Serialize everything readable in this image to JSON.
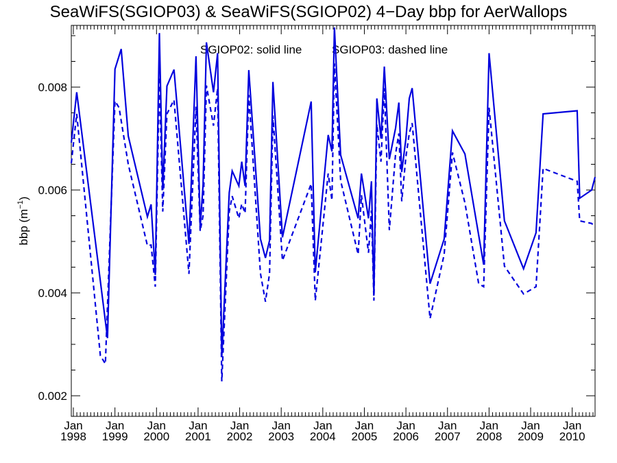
{
  "chart_data": {
    "type": "line",
    "title": "SeaWiFS(SGIOP03) & SeaWiFS(SGIOP02) 4−Day bbp for AerWallops",
    "legend_solid": "SGIOP02: solid line",
    "legend_dashed": "SGIOP03: dashed line",
    "ylabel": "bbp (m",
    "ylabel_exp": "−1",
    "ylabel_close": ")",
    "ylim": [
      0.0016,
      0.0092
    ],
    "xlim": [
      1997.95,
      2010.55
    ],
    "y_ticks": [
      {
        "value": 0.002,
        "label": "0.002"
      },
      {
        "value": 0.004,
        "label": "0.004"
      },
      {
        "value": 0.006,
        "label": "0.006"
      },
      {
        "value": 0.008,
        "label": "0.008"
      }
    ],
    "x_ticks": [
      {
        "value": 1998,
        "month": "Jan",
        "year": "1998"
      },
      {
        "value": 1999,
        "month": "Jan",
        "year": "1999"
      },
      {
        "value": 2000,
        "month": "Jan",
        "year": "2000"
      },
      {
        "value": 2001,
        "month": "Jan",
        "year": "2001"
      },
      {
        "value": 2002,
        "month": "Jan",
        "year": "2002"
      },
      {
        "value": 2003,
        "month": "Jan",
        "year": "2003"
      },
      {
        "value": 2004,
        "month": "Jan",
        "year": "2004"
      },
      {
        "value": 2005,
        "month": "Jan",
        "year": "2005"
      },
      {
        "value": 2006,
        "month": "Jan",
        "year": "2006"
      },
      {
        "value": 2007,
        "month": "Jan",
        "year": "2007"
      },
      {
        "value": 2008,
        "month": "Jan",
        "year": "2008"
      },
      {
        "value": 2009,
        "month": "Jan",
        "year": "2009"
      },
      {
        "value": 2010,
        "month": "Jan",
        "year": "2010"
      }
    ],
    "line_color": "#0000dd",
    "series": [
      {
        "name": "SGIOP02",
        "style": "solid",
        "points": [
          [
            1997.95,
            0.00692
          ],
          [
            1998.08,
            0.0079
          ],
          [
            1998.82,
            0.00312
          ],
          [
            1999.0,
            0.00835
          ],
          [
            1999.15,
            0.00874
          ],
          [
            1999.32,
            0.00705
          ],
          [
            1999.78,
            0.00548
          ],
          [
            1999.87,
            0.00572
          ],
          [
            1999.97,
            0.00435
          ],
          [
            2000.07,
            0.00905
          ],
          [
            2000.15,
            0.006
          ],
          [
            2000.25,
            0.00802
          ],
          [
            2000.42,
            0.00834
          ],
          [
            2000.78,
            0.00495
          ],
          [
            2000.95,
            0.0086
          ],
          [
            2001.05,
            0.00528
          ],
          [
            2001.12,
            0.0061
          ],
          [
            2001.2,
            0.00887
          ],
          [
            2001.37,
            0.0079
          ],
          [
            2001.47,
            0.00866
          ],
          [
            2001.57,
            0.00276
          ],
          [
            2001.75,
            0.00595
          ],
          [
            2001.82,
            0.00637
          ],
          [
            2001.98,
            0.00608
          ],
          [
            2002.05,
            0.00655
          ],
          [
            2002.13,
            0.00608
          ],
          [
            2002.22,
            0.00833
          ],
          [
            2002.5,
            0.00505
          ],
          [
            2002.62,
            0.00468
          ],
          [
            2002.72,
            0.00502
          ],
          [
            2002.8,
            0.0081
          ],
          [
            2003.03,
            0.00508
          ],
          [
            2003.72,
            0.00772
          ],
          [
            2003.82,
            0.0044
          ],
          [
            2004.13,
            0.00707
          ],
          [
            2004.22,
            0.00675
          ],
          [
            2004.28,
            0.00916
          ],
          [
            2004.43,
            0.00668
          ],
          [
            2004.85,
            0.00545
          ],
          [
            2004.93,
            0.00632
          ],
          [
            2005.1,
            0.00545
          ],
          [
            2005.17,
            0.00617
          ],
          [
            2005.23,
            0.00395
          ],
          [
            2005.3,
            0.00778
          ],
          [
            2005.4,
            0.007
          ],
          [
            2005.48,
            0.0084
          ],
          [
            2005.6,
            0.0066
          ],
          [
            2005.75,
            0.0072
          ],
          [
            2005.83,
            0.0077
          ],
          [
            2005.9,
            0.00635
          ],
          [
            2006.0,
            0.007
          ],
          [
            2006.08,
            0.00778
          ],
          [
            2006.15,
            0.00798
          ],
          [
            2006.58,
            0.00418
          ],
          [
            2006.92,
            0.00505
          ],
          [
            2007.12,
            0.00715
          ],
          [
            2007.42,
            0.0067
          ],
          [
            2007.87,
            0.00455
          ],
          [
            2008.0,
            0.00866
          ],
          [
            2008.37,
            0.0054
          ],
          [
            2008.83,
            0.00447
          ],
          [
            2009.13,
            0.00517
          ],
          [
            2009.3,
            0.00748
          ],
          [
            2010.12,
            0.00754
          ],
          [
            2010.18,
            0.00584
          ],
          [
            2010.47,
            0.006
          ],
          [
            2010.55,
            0.00625
          ]
        ]
      },
      {
        "name": "SGIOP03",
        "style": "dashed",
        "points": [
          [
            1997.95,
            0.00652
          ],
          [
            1998.08,
            0.00748
          ],
          [
            1998.65,
            0.00278
          ],
          [
            1998.77,
            0.00262
          ],
          [
            1999.0,
            0.00773
          ],
          [
            1999.1,
            0.0076
          ],
          [
            1999.32,
            0.0065
          ],
          [
            1999.78,
            0.00492
          ],
          [
            1999.87,
            0.00493
          ],
          [
            1999.97,
            0.00412
          ],
          [
            2000.07,
            0.0082
          ],
          [
            2000.15,
            0.00558
          ],
          [
            2000.25,
            0.00748
          ],
          [
            2000.42,
            0.00775
          ],
          [
            2000.78,
            0.00437
          ],
          [
            2000.95,
            0.00762
          ],
          [
            2001.05,
            0.0052
          ],
          [
            2001.12,
            0.0055
          ],
          [
            2001.2,
            0.00803
          ],
          [
            2001.37,
            0.00725
          ],
          [
            2001.47,
            0.00798
          ],
          [
            2001.57,
            0.00228
          ],
          [
            2001.75,
            0.00558
          ],
          [
            2001.82,
            0.00588
          ],
          [
            2001.98,
            0.00545
          ],
          [
            2002.05,
            0.00573
          ],
          [
            2002.13,
            0.00555
          ],
          [
            2002.22,
            0.00785
          ],
          [
            2002.5,
            0.00438
          ],
          [
            2002.62,
            0.00383
          ],
          [
            2002.72,
            0.00438
          ],
          [
            2002.8,
            0.00745
          ],
          [
            2003.03,
            0.00463
          ],
          [
            2003.72,
            0.00612
          ],
          [
            2003.82,
            0.00385
          ],
          [
            2004.13,
            0.00632
          ],
          [
            2004.22,
            0.0058
          ],
          [
            2004.28,
            0.00846
          ],
          [
            2004.43,
            0.00618
          ],
          [
            2004.85,
            0.00475
          ],
          [
            2004.93,
            0.0059
          ],
          [
            2005.1,
            0.00478
          ],
          [
            2005.17,
            0.0056
          ],
          [
            2005.23,
            0.00385
          ],
          [
            2005.3,
            0.00728
          ],
          [
            2005.4,
            0.00655
          ],
          [
            2005.48,
            0.00798
          ],
          [
            2005.6,
            0.00522
          ],
          [
            2005.75,
            0.0067
          ],
          [
            2005.83,
            0.0071
          ],
          [
            2005.9,
            0.00578
          ],
          [
            2006.0,
            0.00665
          ],
          [
            2006.08,
            0.0071
          ],
          [
            2006.15,
            0.0073
          ],
          [
            2006.58,
            0.0035
          ],
          [
            2006.92,
            0.00475
          ],
          [
            2007.12,
            0.00673
          ],
          [
            2007.42,
            0.00575
          ],
          [
            2007.75,
            0.00418
          ],
          [
            2007.87,
            0.00412
          ],
          [
            2008.0,
            0.0076
          ],
          [
            2008.37,
            0.00452
          ],
          [
            2008.83,
            0.00398
          ],
          [
            2009.13,
            0.00412
          ],
          [
            2009.3,
            0.00642
          ],
          [
            2010.12,
            0.00617
          ],
          [
            2010.18,
            0.0054
          ],
          [
            2010.47,
            0.00535
          ],
          [
            2010.55,
            0.00528
          ]
        ]
      }
    ]
  }
}
